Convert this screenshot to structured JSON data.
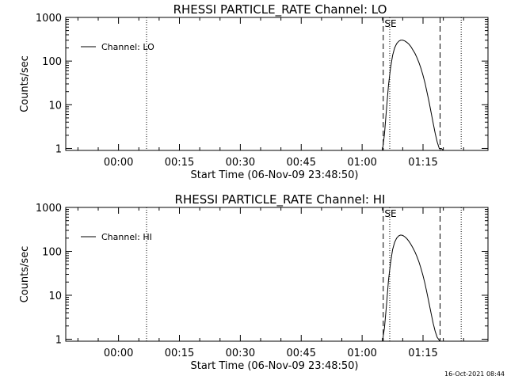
{
  "footer": {
    "timestamp": "16-Oct-2021 08:44"
  },
  "chart_data": [
    {
      "type": "line",
      "title": "RHESSI PARTICLE_RATE Channel: LO",
      "xlabel": "Start Time (06-Nov-09 23:48:50)",
      "ylabel": "Counts/sec",
      "yscale": "log",
      "ylim": [
        0.9,
        1000
      ],
      "yticks": [
        1,
        10,
        100,
        1000
      ],
      "ytick_labels": [
        "1",
        "10",
        "100",
        "1000"
      ],
      "xlim_minutes_after_midnight": [
        -13,
        91
      ],
      "xticks": [
        0,
        15,
        30,
        45,
        60,
        75
      ],
      "xtick_labels": [
        "00:00",
        "00:15",
        "00:30",
        "00:45",
        "01:00",
        "01:15"
      ],
      "legend": {
        "label": "Channel: LO",
        "position": "top-left"
      },
      "marker_label": "SE",
      "markers": {
        "dotted": [
          6.9,
          66.8,
          84.4
        ],
        "dashed": [
          65.2,
          79.2
        ],
        "marker_label_time": 67.0
      },
      "series": [
        {
          "name": "Channel: LO",
          "x": [
            65.0,
            65.5,
            66.0,
            66.5,
            67.0,
            67.5,
            68.0,
            68.5,
            69.0,
            69.5,
            70.0,
            70.5,
            71.0,
            71.5,
            72.0,
            72.5,
            73.0,
            73.5,
            74.0,
            74.5,
            75.0,
            75.5,
            76.0,
            76.5,
            77.0,
            77.5,
            78.0,
            78.5,
            79.0,
            79.5,
            80.0
          ],
          "y": [
            0.9,
            2.1,
            8.0,
            28,
            70,
            135,
            200,
            250,
            285,
            300,
            300,
            290,
            270,
            245,
            215,
            180,
            150,
            120,
            92,
            68,
            47,
            31,
            19,
            11.5,
            6.5,
            3.8,
            2.2,
            1.4,
            1.0,
            1.0,
            0.9
          ]
        }
      ]
    },
    {
      "type": "line",
      "title": "RHESSI PARTICLE_RATE Channel: HI",
      "xlabel": "Start Time (06-Nov-09 23:48:50)",
      "ylabel": "Counts/sec",
      "yscale": "log",
      "ylim": [
        0.9,
        1000
      ],
      "yticks": [
        1,
        10,
        100,
        1000
      ],
      "ytick_labels": [
        "1",
        "10",
        "100",
        "1000"
      ],
      "xlim_minutes_after_midnight": [
        -13,
        91
      ],
      "xticks": [
        0,
        15,
        30,
        45,
        60,
        75
      ],
      "xtick_labels": [
        "00:00",
        "00:15",
        "00:30",
        "00:45",
        "01:00",
        "01:15"
      ],
      "legend": {
        "label": "Channel: HI",
        "position": "top-left"
      },
      "marker_label": "SE",
      "markers": {
        "dotted": [
          6.9,
          66.8,
          84.4
        ],
        "dashed": [
          65.2,
          79.2
        ],
        "marker_label_time": 67.0
      },
      "series": [
        {
          "name": "Channel: HI",
          "x": [
            65.0,
            65.5,
            66.0,
            66.5,
            67.0,
            67.5,
            68.0,
            68.5,
            69.0,
            69.5,
            70.0,
            70.5,
            71.0,
            71.5,
            72.0,
            72.5,
            73.0,
            73.5,
            74.0,
            74.5,
            75.0,
            75.5,
            76.0,
            76.5,
            77.0,
            77.5,
            78.0,
            78.5,
            79.0,
            79.2
          ],
          "y": [
            0.9,
            1.8,
            6.0,
            22,
            55,
            110,
            160,
            200,
            225,
            235,
            230,
            215,
            195,
            170,
            145,
            120,
            97,
            76,
            57,
            41,
            28,
            18,
            11,
            6.5,
            3.8,
            2.3,
            1.5,
            1.1,
            0.95,
            0.9
          ]
        }
      ]
    }
  ]
}
